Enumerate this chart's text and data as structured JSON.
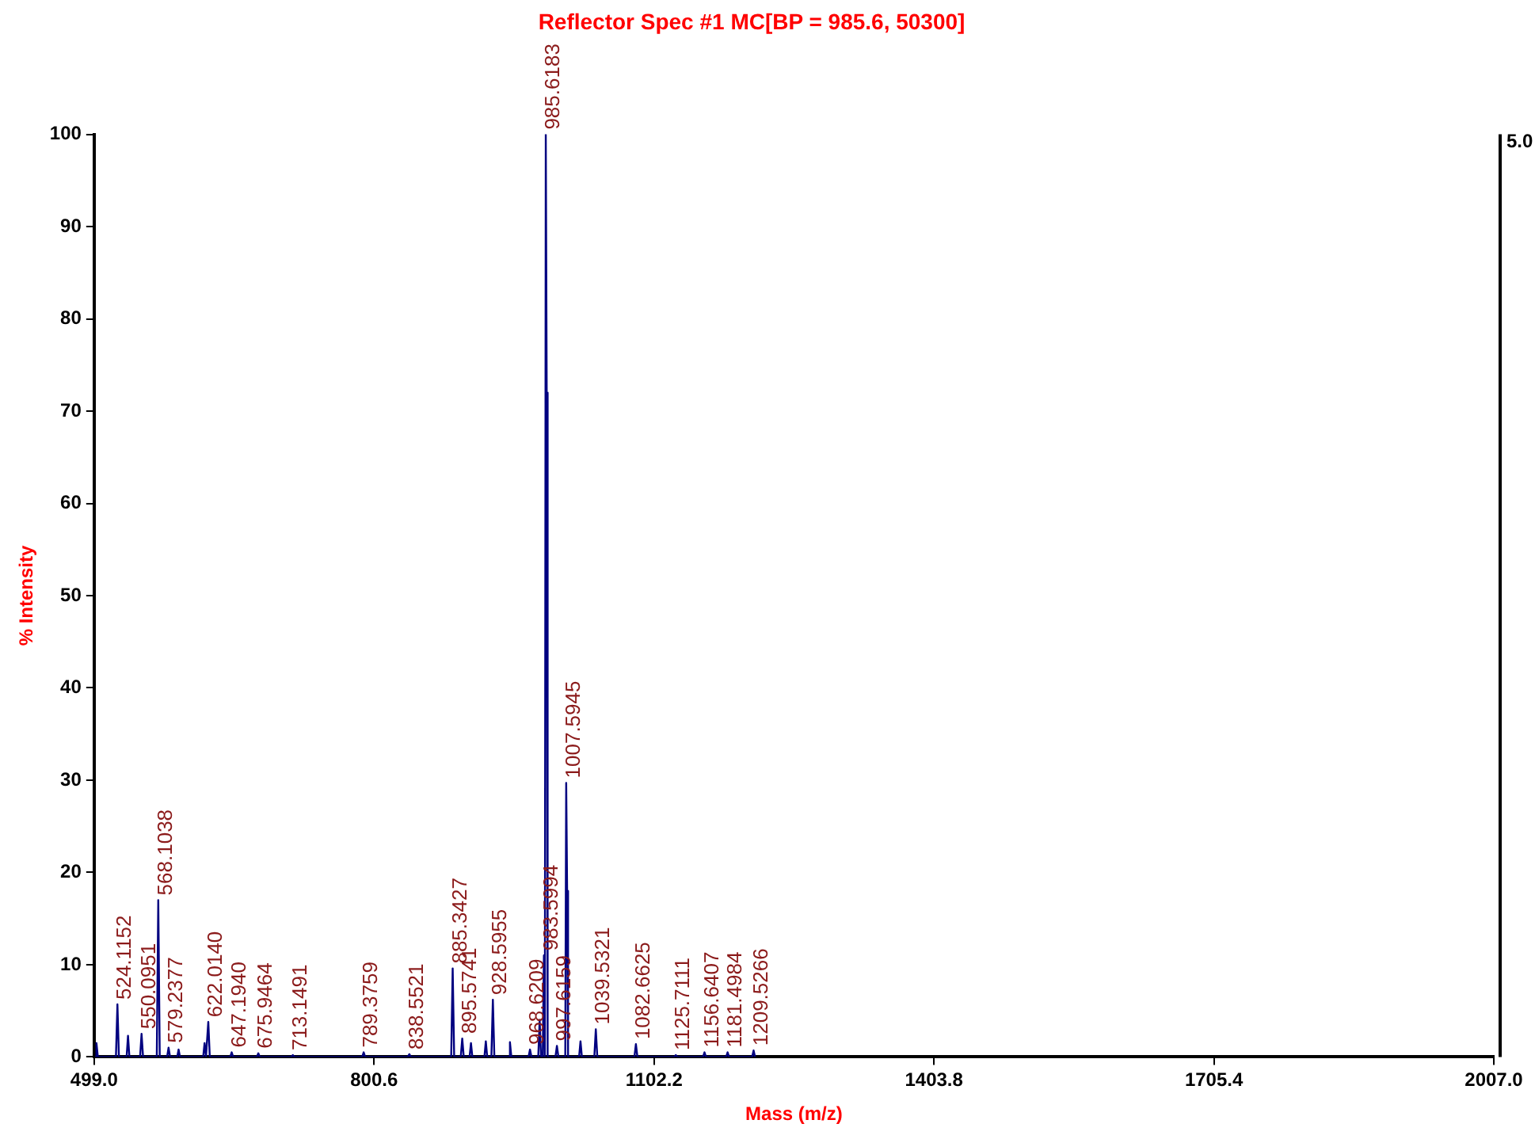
{
  "chart_data": {
    "type": "line",
    "title": "Reflector Spec #1 MC[BP = 985.6, 50300]",
    "xlabel": "Mass (m/z)",
    "ylabel": "% Intensity",
    "xlim": [
      499,
      2007
    ],
    "xticks": [
      {
        "value": 499,
        "label": "499.0"
      },
      {
        "value": 800.6,
        "label": "800.6"
      },
      {
        "value": 1102.2,
        "label": "1102.2"
      },
      {
        "value": 1403.8,
        "label": "1403.8"
      },
      {
        "value": 1705.4,
        "label": "1705.4"
      },
      {
        "value": 2007,
        "label": "2007.0"
      }
    ],
    "ylim": [
      0,
      100
    ],
    "yticks": [
      0,
      10,
      20,
      30,
      40,
      50,
      60,
      70,
      80,
      90,
      100
    ],
    "grid": false,
    "legend": false,
    "marker": "none",
    "line_style": "solid",
    "series": [
      {
        "color": "#000080",
        "x": [
          500,
          501.5,
          503,
          522.5,
          524.1,
          525.7,
          534,
          535.5,
          537,
          548.5,
          550.1,
          551.7,
          566.5,
          568.1,
          569.7,
          577.6,
          579.2,
          580.8,
          588.5,
          590,
          591.5,
          616.5,
          618,
          619.5,
          620.4,
          622,
          623.6,
          645.6,
          647.2,
          648.8,
          674.3,
          675.9,
          677.5,
          711.5,
          713.1,
          714.7,
          787.8,
          789.4,
          791,
          837,
          838.6,
          840.2,
          883.7,
          885.3,
          886.9,
          894,
          895.6,
          897.2,
          903.5,
          905,
          906.5,
          919.5,
          921,
          922.5,
          927,
          928.6,
          930.2,
          945.5,
          947,
          948.5,
          967,
          968.6,
          970.2,
          977.5,
          979,
          980.5,
          982.3,
          983.6,
          984.6,
          985.6,
          986.6,
          987.6,
          996,
          997.6,
          999.2,
          1006.6,
          1007.6,
          1008.6,
          1009.6,
          1021.5,
          1023,
          1024.5,
          1037.9,
          1039.5,
          1041.1,
          1081.1,
          1082.7,
          1084.3,
          1124.1,
          1125.7,
          1127.3,
          1155,
          1156.6,
          1158.2,
          1179.9,
          1181.5,
          1183.1,
          1207.9,
          1209.5,
          1211.1
        ],
        "values": [
          0,
          1.5,
          0,
          0,
          5.7,
          0,
          0,
          2.3,
          0,
          0,
          2.5,
          0,
          0,
          17,
          0,
          0,
          1,
          0,
          0,
          0.8,
          0,
          0,
          1.5,
          0,
          0,
          3.8,
          0,
          0,
          0.5,
          0,
          0,
          0.4,
          0,
          0,
          0.2,
          0,
          0,
          0.5,
          0,
          0,
          0.3,
          0,
          0,
          9.6,
          0,
          0,
          2,
          0,
          0,
          1.5,
          0,
          0,
          1.7,
          0,
          0,
          6.2,
          0,
          0,
          1.6,
          0,
          0,
          0.8,
          0,
          0,
          4,
          0,
          0,
          11,
          0,
          100,
          72,
          0,
          0,
          1.2,
          0,
          0,
          29.7,
          18,
          0,
          0,
          1.7,
          0,
          0,
          3,
          0,
          0,
          1.4,
          0,
          0,
          0.2,
          0,
          0,
          0.5,
          0,
          0,
          0.5,
          0,
          0,
          0.7,
          0
        ]
      }
    ],
    "annotations": [
      {
        "text": "524.1152",
        "x": 524.1,
        "y": 5.7
      },
      {
        "text": "550.0951",
        "x": 550.1,
        "y": 2.5
      },
      {
        "text": "568.1038",
        "x": 568.1,
        "y": 17
      },
      {
        "text": "579.2377",
        "x": 579.2,
        "y": 1
      },
      {
        "text": "622.0140",
        "x": 622,
        "y": 3.8
      },
      {
        "text": "647.1940",
        "x": 647.2,
        "y": 0.5
      },
      {
        "text": "675.9464",
        "x": 675.9,
        "y": 0.4
      },
      {
        "text": "713.1491",
        "x": 713.1,
        "y": 0.2
      },
      {
        "text": "789.3759",
        "x": 789.4,
        "y": 0.5
      },
      {
        "text": "838.5521",
        "x": 838.6,
        "y": 0.3
      },
      {
        "text": "885.3427",
        "x": 885.3,
        "y": 9.6
      },
      {
        "text": "895.5741",
        "x": 895.6,
        "y": 2
      },
      {
        "text": "928.5955",
        "x": 928.6,
        "y": 6.2
      },
      {
        "text": "968.6209",
        "x": 968.6,
        "y": 0.8
      },
      {
        "text": "983.5994",
        "x": 983.6,
        "y": 11
      },
      {
        "text": "985.6183",
        "x": 985.6,
        "y": 100
      },
      {
        "text": "997.6159",
        "x": 997.6,
        "y": 1.2
      },
      {
        "text": "1007.5945",
        "x": 1007.6,
        "y": 29.7
      },
      {
        "text": "1039.5321",
        "x": 1039.5,
        "y": 3
      },
      {
        "text": "1082.6625",
        "x": 1082.7,
        "y": 1.4
      },
      {
        "text": "1125.7111",
        "x": 1125.7,
        "y": 0.2
      },
      {
        "text": "1156.6407",
        "x": 1156.6,
        "y": 0.5
      },
      {
        "text": "1181.4984",
        "x": 1181.5,
        "y": 0.5
      },
      {
        "text": "1209.5266",
        "x": 1209.5,
        "y": 0.7
      },
      "5.0"
    ]
  }
}
